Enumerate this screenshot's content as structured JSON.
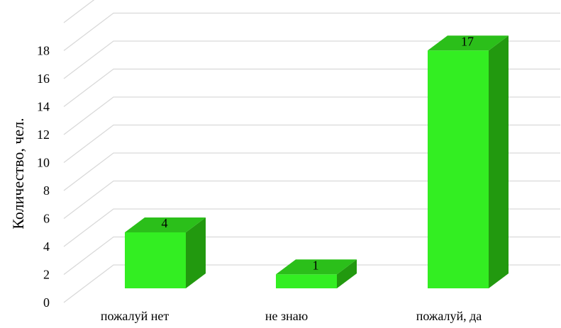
{
  "chart_data": {
    "type": "bar",
    "categories": [
      "пожалуй нет",
      "не знаю",
      "пожалуй, да"
    ],
    "values": [
      4,
      1,
      17
    ],
    "ylabel": "Количество, чел.",
    "ylim": [
      0,
      18
    ],
    "yticks": [
      "0",
      "2",
      "4",
      "6",
      "8",
      "10",
      "12",
      "14",
      "16",
      "18"
    ],
    "data_labels": [
      "4",
      "1",
      "17"
    ],
    "grid": true,
    "legend": "none",
    "colors": {
      "front": "#33ee22",
      "side": "#22990f",
      "top": "#2bbf1a",
      "grid": "#d9d9d9"
    }
  }
}
